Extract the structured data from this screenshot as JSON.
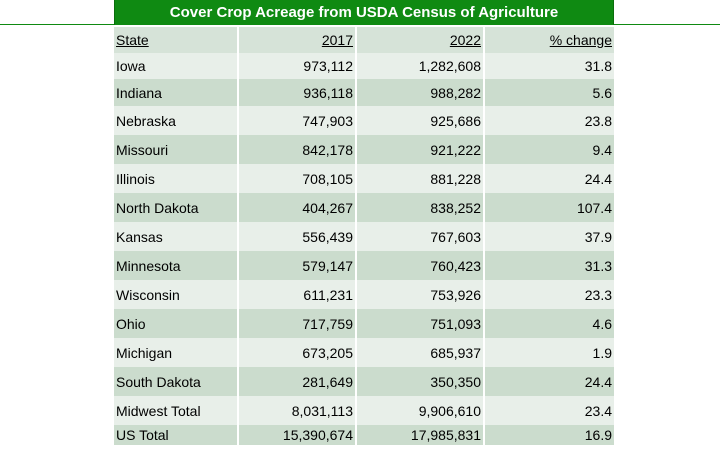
{
  "title": "Cover Crop Acreage from USDA Census of Agriculture",
  "headers": [
    "State",
    "2017",
    "2022",
    "% change"
  ],
  "rows": [
    {
      "state": "Iowa",
      "y2017": "973,112",
      "y2022": "1,282,608",
      "pct": "31.8"
    },
    {
      "state": "Indiana",
      "y2017": "936,118",
      "y2022": "988,282",
      "pct": "5.6"
    },
    {
      "state": "Nebraska",
      "y2017": "747,903",
      "y2022": "925,686",
      "pct": "23.8"
    },
    {
      "state": "Missouri",
      "y2017": "842,178",
      "y2022": "921,222",
      "pct": "9.4"
    },
    {
      "state": "Illinois",
      "y2017": "708,105",
      "y2022": "881,228",
      "pct": "24.4"
    },
    {
      "state": "North Dakota",
      "y2017": "404,267",
      "y2022": "838,252",
      "pct": "107.4"
    },
    {
      "state": "Kansas",
      "y2017": "556,439",
      "y2022": "767,603",
      "pct": "37.9"
    },
    {
      "state": "Minnesota",
      "y2017": "579,147",
      "y2022": "760,423",
      "pct": "31.3"
    },
    {
      "state": "Wisconsin",
      "y2017": "611,231",
      "y2022": "753,926",
      "pct": "23.3"
    },
    {
      "state": "Ohio",
      "y2017": "717,759",
      "y2022": "751,093",
      "pct": "4.6"
    },
    {
      "state": "Michigan",
      "y2017": "673,205",
      "y2022": "685,937",
      "pct": "1.9"
    },
    {
      "state": "South Dakota",
      "y2017": "281,649",
      "y2022": "350,350",
      "pct": "24.4"
    },
    {
      "state": "Midwest Total",
      "y2017": "8,031,113",
      "y2022": "9,906,610",
      "pct": "23.4"
    },
    {
      "state": "US Total",
      "y2017": "15,390,674",
      "y2022": "17,985,831",
      "pct": "16.9"
    }
  ],
  "colors": {
    "title_bg": "#0f8a12",
    "row_light": "#e8efe9",
    "row_dark": "#cbdccd"
  }
}
